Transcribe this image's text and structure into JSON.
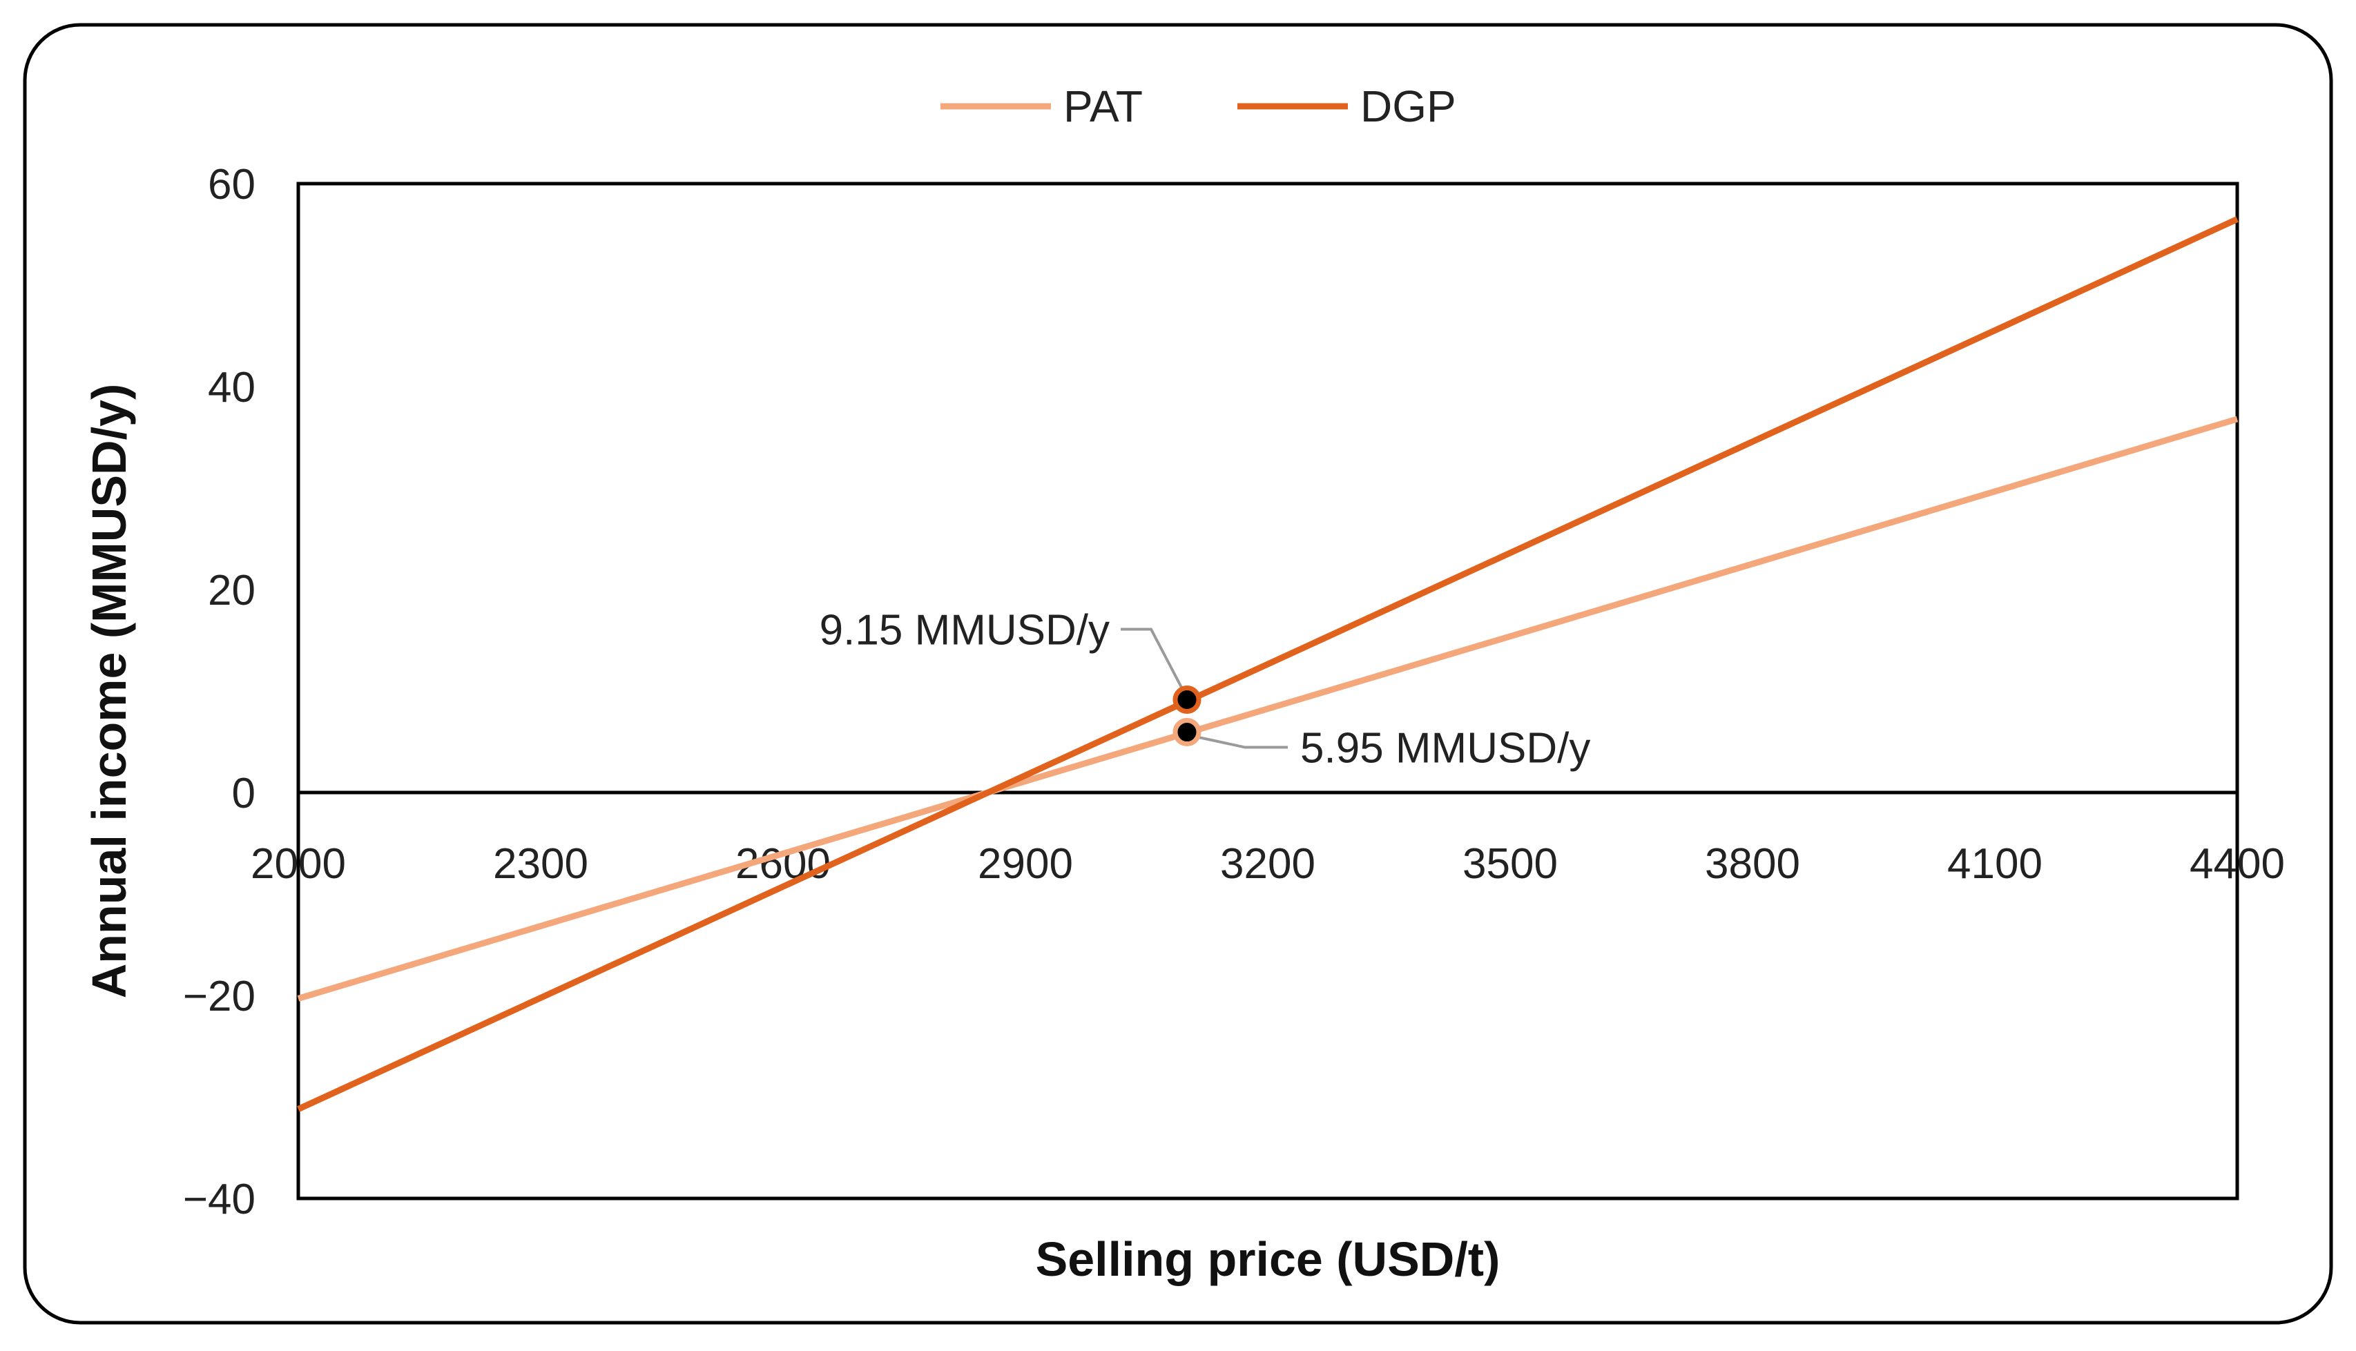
{
  "chart_data": {
    "type": "line",
    "title": "",
    "xlabel": "Selling price (USD/t)",
    "ylabel": "Annual income (MMUSD/y)",
    "xlim": [
      2000,
      4400
    ],
    "ylim": [
      -40,
      60
    ],
    "xticks": [
      2000,
      2300,
      2600,
      2900,
      3200,
      3500,
      3800,
      4100,
      4400
    ],
    "yticks": [
      -40,
      -20,
      0,
      20,
      40,
      60
    ],
    "ytick_labels": [
      "−40",
      "−20",
      "0",
      "20",
      "40",
      "60"
    ],
    "xtick_labels": [
      "2000",
      "2300",
      "2600",
      "2900",
      "3200",
      "3500",
      "3800",
      "4100",
      "4400"
    ],
    "legend": {
      "placement": "top-center"
    },
    "series": [
      {
        "name": "PAT",
        "color": "#F4A77A",
        "x": [
          2000,
          4400
        ],
        "y": [
          -20.3,
          36.8
        ]
      },
      {
        "name": "DGP",
        "color": "#E0621C",
        "x": [
          2000,
          4400
        ],
        "y": [
          -31.2,
          56.5
        ]
      }
    ],
    "annotations": [
      {
        "series": "DGP",
        "x": 3100,
        "y": 9.15,
        "text": "9.15 MMUSD/y"
      },
      {
        "series": "PAT",
        "x": 3100,
        "y": 5.95,
        "text": "5.95 MMUSD/y"
      }
    ],
    "grid": false
  }
}
